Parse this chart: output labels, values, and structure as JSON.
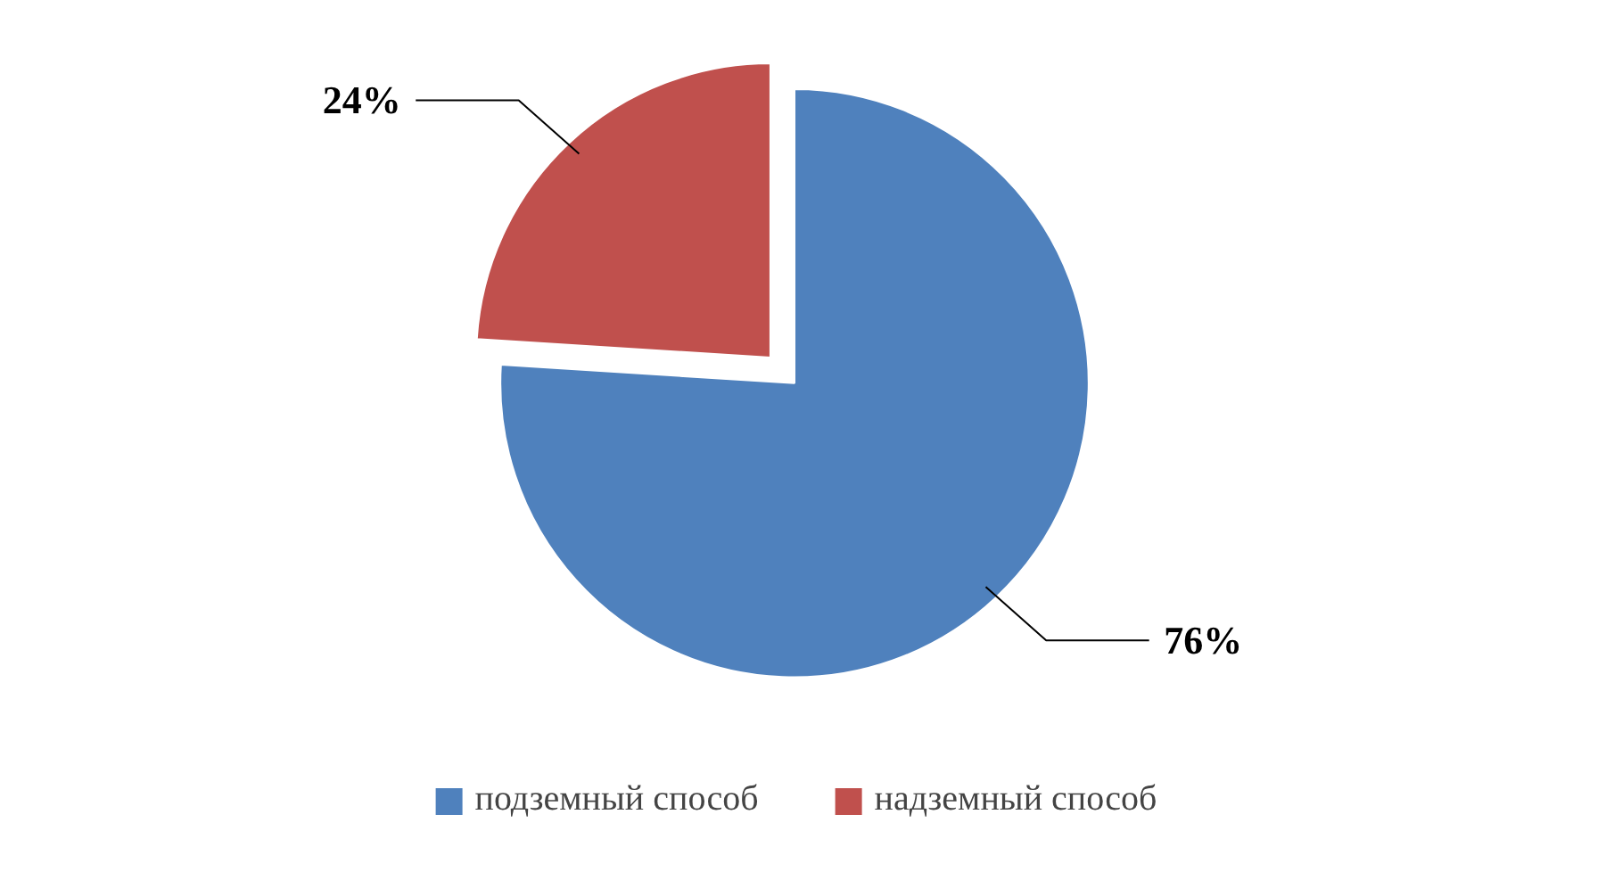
{
  "chart_data": {
    "type": "pie",
    "categories": [
      "подземный способ",
      "надземный способ"
    ],
    "values": [
      76,
      24
    ],
    "colors": [
      "#4f81bd",
      "#c0504d"
    ],
    "value_labels": [
      "76%",
      "24%"
    ],
    "legend": "bottom"
  }
}
